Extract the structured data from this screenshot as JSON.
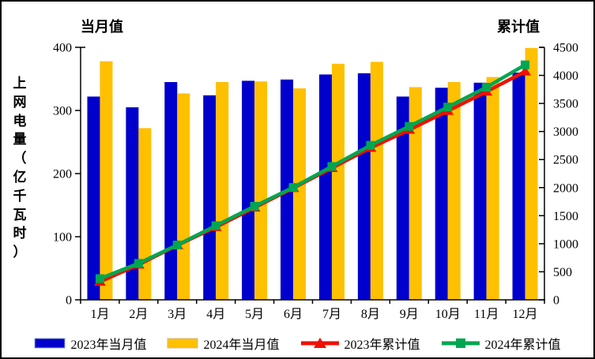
{
  "titles": {
    "left_axis_title": "当月值",
    "right_axis_title": "累计值"
  },
  "y_axis_label_vertical": "上\n网\n电\n量\n（\n亿\n千\n瓦\n时\n）",
  "colors": {
    "bar_2023": "#0000CC",
    "bar_2024": "#FFC000",
    "line_2023": "#EE1100",
    "line_2024": "#00A651",
    "axis": "#000000"
  },
  "legend": {
    "items": [
      {
        "label": "2023年当月值",
        "color": "#0000CC",
        "type": "bar"
      },
      {
        "label": "2024年当月值",
        "color": "#FFC000",
        "type": "bar"
      },
      {
        "label": "2023年累计值",
        "color": "#EE1100",
        "type": "line",
        "marker": "triangle"
      },
      {
        "label": "2024年累计值",
        "color": "#00A651",
        "type": "line",
        "marker": "square"
      }
    ]
  },
  "chart_data": {
    "type": "combo (grouped bars + dual-axis cumulative lines)",
    "title_left": "当月值",
    "title_right": "累计值",
    "ylabel_left": "上网电量（亿千瓦时）",
    "categories": [
      "1月",
      "2月",
      "3月",
      "4月",
      "5月",
      "6月",
      "7月",
      "8月",
      "9月",
      "10月",
      "11月",
      "12月"
    ],
    "series": [
      {
        "name": "2023年当月值",
        "type": "bar",
        "axis": "left",
        "color": "#0000CC",
        "values": [
          322,
          305,
          345,
          324,
          347,
          349,
          357,
          359,
          322,
          336,
          344,
          360
        ]
      },
      {
        "name": "2024年当月值",
        "type": "bar",
        "axis": "left",
        "color": "#FFC000",
        "values": [
          378,
          272,
          327,
          345,
          346,
          335,
          374,
          377,
          337,
          345,
          353,
          399
        ]
      },
      {
        "name": "2023年累计值",
        "type": "line",
        "axis": "right",
        "color": "#EE1100",
        "marker": "triangle",
        "values": [
          322,
          627,
          972,
          1296,
          1643,
          1992,
          2349,
          2708,
          3030,
          3366,
          3710,
          4070
        ]
      },
      {
        "name": "2024年累计值",
        "type": "line",
        "axis": "right",
        "color": "#00A651",
        "marker": "square",
        "values": [
          378,
          650,
          977,
          1322,
          1668,
          2003,
          2377,
          2754,
          3091,
          3436,
          3789,
          4188
        ]
      }
    ],
    "left_axis": {
      "min": 0,
      "max": 400,
      "ticks": [
        0,
        100,
        200,
        300,
        400
      ]
    },
    "right_axis": {
      "min": 0,
      "max": 4500,
      "ticks": [
        0,
        500,
        1000,
        1500,
        2000,
        2500,
        3000,
        3500,
        4000,
        4500
      ]
    },
    "grid": false,
    "legend_position": "bottom"
  }
}
